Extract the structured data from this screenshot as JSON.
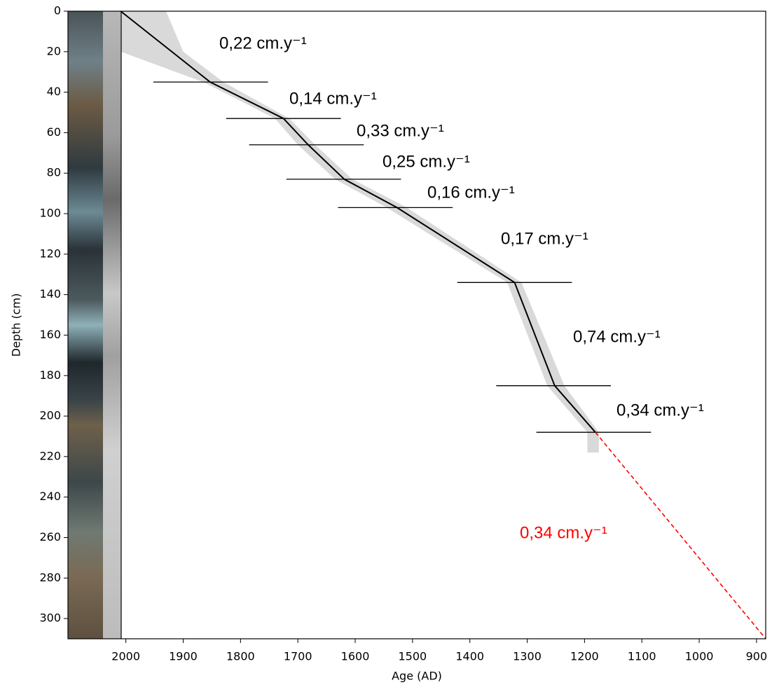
{
  "chart_data": {
    "type": "line",
    "x_label": "Age (AD)",
    "y_label": "Depth (cm)",
    "xlim": [
      2101,
      884
    ],
    "ylim": [
      0,
      310
    ],
    "xticks": [
      2000,
      1900,
      1800,
      1700,
      1600,
      1500,
      1400,
      1300,
      1200,
      1100,
      1000,
      900
    ],
    "yticks": [
      0,
      20,
      40,
      60,
      80,
      100,
      120,
      140,
      160,
      180,
      200,
      220,
      240,
      260,
      280,
      300
    ],
    "series": [
      {
        "color": "#000000",
        "x": [
          2009,
          1853,
          1725,
          1682,
          1619,
          1527,
          1322,
          1252,
          1181
        ],
        "values": [
          0,
          35,
          53,
          66,
          83,
          97,
          134,
          185,
          208
        ]
      },
      {
        "color": "#ff0000",
        "dashed": true,
        "x": [
          1181,
          884
        ],
        "values": [
          208,
          310
        ]
      }
    ],
    "envelope": {
      "color": "#d9d9d9",
      "depths": [
        0,
        20,
        35,
        53,
        66,
        83,
        97,
        134,
        185,
        208,
        218
      ],
      "young": [
        2009,
        2009,
        1865,
        1740,
        1700,
        1635,
        1545,
        1335,
        1265,
        1195,
        1195
      ],
      "old": [
        1930,
        1900,
        1830,
        1715,
        1670,
        1605,
        1510,
        1310,
        1235,
        1175,
        1175
      ]
    },
    "tie_points": {
      "ages": [
        1852,
        1725,
        1685,
        1620,
        1530,
        1322,
        1254,
        1184
      ],
      "depths": [
        35,
        53,
        66,
        83,
        97,
        134,
        185,
        208
      ],
      "errors": [
        100,
        100,
        100,
        100,
        100,
        100,
        100,
        100
      ]
    },
    "annotations": [
      {
        "text": "0,22 cm.y⁻¹",
        "color": "#000000"
      },
      {
        "text": "0,14 cm.y⁻¹",
        "color": "#000000"
      },
      {
        "text": "0,33 cm.y⁻¹",
        "color": "#000000"
      },
      {
        "text": "0,25 cm.y⁻¹",
        "color": "#000000"
      },
      {
        "text": "0,16  cm.y⁻¹",
        "color": "#000000"
      },
      {
        "text": "0,17 cm.y⁻¹",
        "color": "#000000"
      },
      {
        "text": "0,74 cm.y⁻¹",
        "color": "#000000"
      },
      {
        "text": "0,34 cm.y⁻¹",
        "color": "#000000"
      },
      {
        "text": "0,34 cm.y⁻¹",
        "color": "#ff0000"
      }
    ]
  }
}
